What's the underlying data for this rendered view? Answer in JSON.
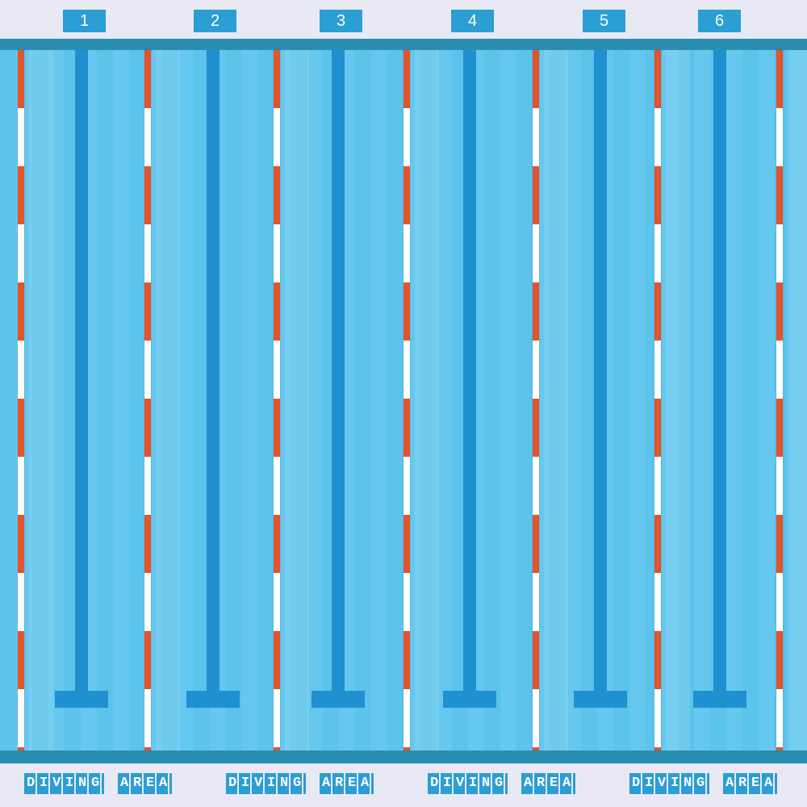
{
  "lane_numbers": [
    "1",
    "2",
    "3",
    "4",
    "5",
    "6"
  ],
  "bottom_labels": [
    [
      "DIVING",
      "AREA"
    ],
    [
      "DIVING",
      "AREA"
    ],
    [
      "DIVING",
      "AREA"
    ],
    [
      "DIVING",
      "AREA"
    ]
  ]
}
